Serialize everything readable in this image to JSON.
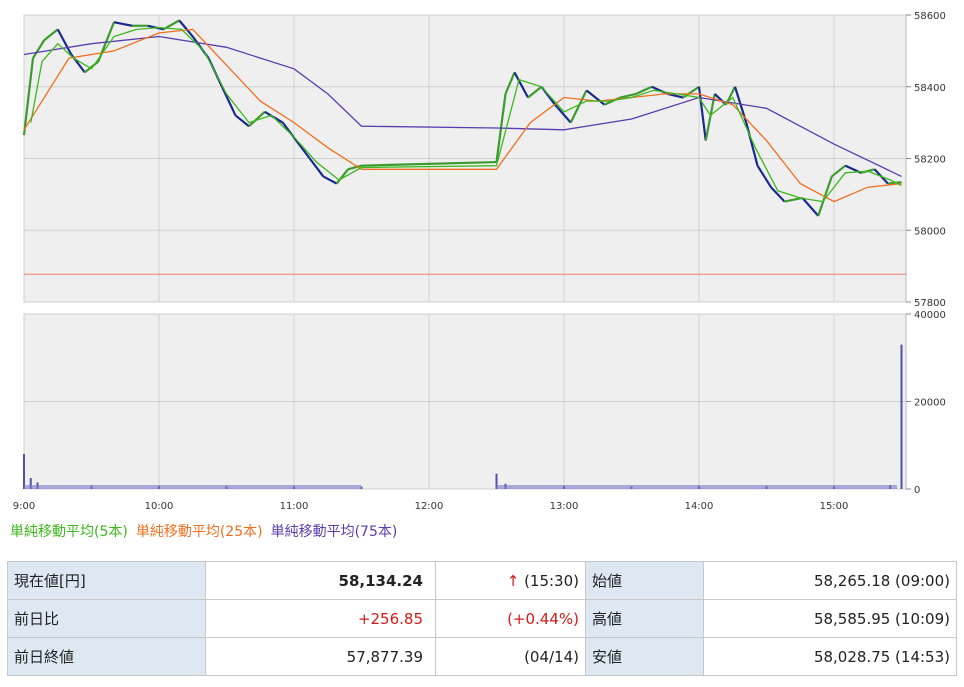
{
  "chart_data": {
    "type": "candlestick",
    "x_ticks": [
      "9:00",
      "10:00",
      "11:00",
      "12:00",
      "13:00",
      "14:00",
      "15:00"
    ],
    "price_axis": {
      "ticks": [
        57800,
        58000,
        58200,
        58400,
        58600
      ],
      "range": [
        57800,
        58600
      ]
    },
    "volume_axis": {
      "ticks": [
        0,
        20000,
        40000
      ],
      "range": [
        0,
        40000
      ]
    },
    "previous_close_line": 57877.39,
    "legend": [
      {
        "label": "単純移動平均(5本)",
        "color": "#3cb81e"
      },
      {
        "label": "単純移動平均(25本)",
        "color": "#f07020"
      },
      {
        "label": "単純移動平均(75本)",
        "color": "#5a3db0"
      }
    ],
    "colors": {
      "up": "#3c9a2e",
      "down": "#1a2a8c",
      "grid": "#d0d0d0",
      "plot_bg": "#efefef",
      "prev_close": "#f08070",
      "volume": "#5050b0"
    },
    "price_path": [
      [
        "9:00",
        58265
      ],
      [
        "9:04",
        58480
      ],
      [
        "9:09",
        58530
      ],
      [
        "9:15",
        58560
      ],
      [
        "9:21",
        58490
      ],
      [
        "9:27",
        58440
      ],
      [
        "9:33",
        58470
      ],
      [
        "9:40",
        58580
      ],
      [
        "9:48",
        58570
      ],
      [
        "9:55",
        58570
      ],
      [
        "10:02",
        58560
      ],
      [
        "10:09",
        58585
      ],
      [
        "10:15",
        58540
      ],
      [
        "10:22",
        58480
      ],
      [
        "10:28",
        58400
      ],
      [
        "10:34",
        58320
      ],
      [
        "10:40",
        58290
      ],
      [
        "10:47",
        58330
      ],
      [
        "10:55",
        58300
      ],
      [
        "11:01",
        58250
      ],
      [
        "11:07",
        58200
      ],
      [
        "11:13",
        58150
      ],
      [
        "11:19",
        58130
      ],
      [
        "11:24",
        58170
      ],
      [
        "11:30",
        58180
      ],
      [
        "12:30",
        58190
      ],
      [
        "12:34",
        58380
      ],
      [
        "12:38",
        58440
      ],
      [
        "12:44",
        58370
      ],
      [
        "12:50",
        58400
      ],
      [
        "12:56",
        58350
      ],
      [
        "13:03",
        58300
      ],
      [
        "13:10",
        58390
      ],
      [
        "13:18",
        58350
      ],
      [
        "13:25",
        58370
      ],
      [
        "13:32",
        58380
      ],
      [
        "13:39",
        58400
      ],
      [
        "13:46",
        58380
      ],
      [
        "13:53",
        58370
      ],
      [
        "14:00",
        58400
      ],
      [
        "14:03",
        58250
      ],
      [
        "14:07",
        58380
      ],
      [
        "14:12",
        58350
      ],
      [
        "14:16",
        58400
      ],
      [
        "14:21",
        58300
      ],
      [
        "14:26",
        58180
      ],
      [
        "14:32",
        58120
      ],
      [
        "14:38",
        58080
      ],
      [
        "14:46",
        58090
      ],
      [
        "14:53",
        58040
      ],
      [
        "14:59",
        58150
      ],
      [
        "15:05",
        58180
      ],
      [
        "15:12",
        58160
      ],
      [
        "15:18",
        58170
      ],
      [
        "15:24",
        58130
      ],
      [
        "15:30",
        58134
      ]
    ],
    "ma5_path": [
      [
        "9:03",
        58300
      ],
      [
        "9:08",
        58470
      ],
      [
        "9:15",
        58520
      ],
      [
        "9:22",
        58480
      ],
      [
        "9:30",
        58450
      ],
      [
        "9:40",
        58540
      ],
      [
        "9:50",
        58560
      ],
      [
        "10:00",
        58565
      ],
      [
        "10:10",
        58560
      ],
      [
        "10:20",
        58500
      ],
      [
        "10:30",
        58380
      ],
      [
        "10:40",
        58300
      ],
      [
        "10:50",
        58320
      ],
      [
        "11:00",
        58260
      ],
      [
        "11:10",
        58190
      ],
      [
        "11:20",
        58140
      ],
      [
        "11:30",
        58175
      ],
      [
        "12:30",
        58180
      ],
      [
        "12:35",
        58300
      ],
      [
        "12:40",
        58420
      ],
      [
        "12:50",
        58400
      ],
      [
        "13:00",
        58330
      ],
      [
        "13:10",
        58360
      ],
      [
        "13:20",
        58360
      ],
      [
        "13:30",
        58370
      ],
      [
        "13:40",
        58390
      ],
      [
        "13:50",
        58380
      ],
      [
        "14:00",
        58370
      ],
      [
        "14:05",
        58320
      ],
      [
        "14:15",
        58370
      ],
      [
        "14:25",
        58230
      ],
      [
        "14:35",
        58110
      ],
      [
        "14:45",
        58090
      ],
      [
        "14:55",
        58080
      ],
      [
        "15:05",
        58160
      ],
      [
        "15:15",
        58165
      ],
      [
        "15:25",
        58140
      ],
      [
        "15:30",
        58125
      ]
    ],
    "ma25_path": [
      [
        "9:00",
        58280
      ],
      [
        "9:20",
        58480
      ],
      [
        "9:40",
        58500
      ],
      [
        "10:00",
        58550
      ],
      [
        "10:15",
        58560
      ],
      [
        "10:30",
        58460
      ],
      [
        "10:45",
        58360
      ],
      [
        "11:00",
        58300
      ],
      [
        "11:15",
        58230
      ],
      [
        "11:30",
        58170
      ],
      [
        "12:30",
        58170
      ],
      [
        "12:45",
        58300
      ],
      [
        "13:00",
        58370
      ],
      [
        "13:15",
        58360
      ],
      [
        "13:30",
        58370
      ],
      [
        "13:45",
        58380
      ],
      [
        "14:00",
        58380
      ],
      [
        "14:15",
        58350
      ],
      [
        "14:30",
        58250
      ],
      [
        "14:45",
        58130
      ],
      [
        "15:00",
        58080
      ],
      [
        "15:15",
        58120
      ],
      [
        "15:30",
        58130
      ]
    ],
    "ma75_path": [
      [
        "9:00",
        58490
      ],
      [
        "9:30",
        58520
      ],
      [
        "10:00",
        58540
      ],
      [
        "10:30",
        58510
      ],
      [
        "11:00",
        58450
      ],
      [
        "11:15",
        58380
      ],
      [
        "11:30",
        58290
      ],
      [
        "12:30",
        58285
      ],
      [
        "13:00",
        58280
      ],
      [
        "13:30",
        58310
      ],
      [
        "14:00",
        58370
      ],
      [
        "14:30",
        58340
      ],
      [
        "15:00",
        58240
      ],
      [
        "15:30",
        58150
      ]
    ],
    "volume_path": [
      [
        "9:00",
        8000
      ],
      [
        "9:03",
        2500
      ],
      [
        "9:06",
        1500
      ],
      [
        "9:30",
        800
      ],
      [
        "10:00",
        700
      ],
      [
        "10:30",
        700
      ],
      [
        "11:00",
        600
      ],
      [
        "11:30",
        500
      ],
      [
        "12:30",
        3500
      ],
      [
        "12:34",
        1200
      ],
      [
        "13:00",
        700
      ],
      [
        "13:30",
        600
      ],
      [
        "14:00",
        700
      ],
      [
        "14:30",
        700
      ],
      [
        "15:00",
        600
      ],
      [
        "15:25",
        900
      ],
      [
        "15:30",
        33000
      ]
    ]
  },
  "legend_labels": {
    "ma5": "単純移動平均(5本)",
    "ma25": "単純移動平均(25本)",
    "ma75": "単純移動平均(75本)"
  },
  "quote": {
    "current_label": "現在値[円]",
    "current_value": "58,134.24",
    "current_arrow": "↑",
    "current_time": "(15:30)",
    "open_label": "始値",
    "open_value": "58,265.18 (09:00)",
    "change_label": "前日比",
    "change_value": "+256.85",
    "change_pct": "(+0.44%)",
    "high_label": "高値",
    "high_value": "58,585.95 (10:09)",
    "prev_close_label": "前日終値",
    "prev_close_value": "57,877.39",
    "prev_close_date": "(04/14)",
    "low_label": "安値",
    "low_value": "58,028.75 (14:53)"
  }
}
